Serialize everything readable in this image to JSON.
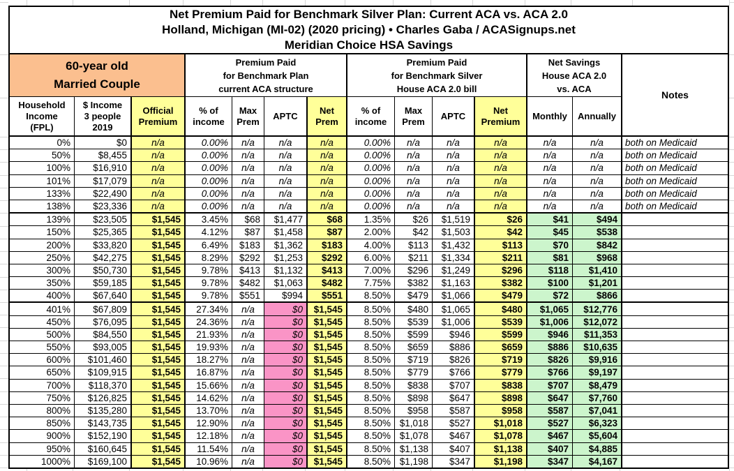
{
  "sheet": {
    "title_lines": [
      "Net Premium Paid for Benchmark Silver Plan: Current ACA vs. ACA 2.0",
      "Holland, Michigan (MI-02) (2020 pricing) • Charles Gaba / ACASignups.net",
      "Meridian Choice HSA Savings"
    ],
    "groups": {
      "household": "60-year old\nMarried Couple",
      "aca_current": "Premium Paid\nfor Benchmark Plan\ncurrent ACA structure",
      "aca_house": "Premium Paid\nfor Benchmark Silver\nHouse ACA 2.0 bill",
      "net_savings": "Net Savings\nHouse ACA 2.0\nvs. ACA"
    },
    "notes_header": "Notes",
    "column_headers": [
      "Household\nIncome\n(FPL)",
      "$ Income\n3 people\n2019",
      "Official\nPremium",
      "% of\nincome",
      "Max\nPrem",
      "APTC",
      "Net\nPrem",
      "% of\nincome",
      "Max\nPrem",
      "APTC",
      "Net\nPremium",
      "Monthly",
      "Annually"
    ],
    "rows": [
      {
        "section": "medicaid",
        "cells": [
          "0%",
          "$0",
          "n/a",
          "0.00%",
          "n/a",
          "n/a",
          "n/a",
          "0.00%",
          "n/a",
          "n/a",
          "n/a",
          "n/a",
          "n/a",
          "both on Medicaid"
        ]
      },
      {
        "section": "medicaid",
        "cells": [
          "50%",
          "$8,455",
          "n/a",
          "0.00%",
          "n/a",
          "n/a",
          "n/a",
          "0.00%",
          "n/a",
          "n/a",
          "n/a",
          "n/a",
          "n/a",
          "both on Medicaid"
        ]
      },
      {
        "section": "medicaid",
        "cells": [
          "100%",
          "$16,910",
          "n/a",
          "0.00%",
          "n/a",
          "n/a",
          "n/a",
          "0.00%",
          "n/a",
          "n/a",
          "n/a",
          "n/a",
          "n/a",
          "both on Medicaid"
        ]
      },
      {
        "section": "medicaid",
        "cells": [
          "101%",
          "$17,079",
          "n/a",
          "0.00%",
          "n/a",
          "n/a",
          "n/a",
          "0.00%",
          "n/a",
          "n/a",
          "n/a",
          "n/a",
          "n/a",
          "both on Medicaid"
        ]
      },
      {
        "section": "medicaid",
        "cells": [
          "133%",
          "$22,490",
          "n/a",
          "0.00%",
          "n/a",
          "n/a",
          "n/a",
          "0.00%",
          "n/a",
          "n/a",
          "n/a",
          "n/a",
          "n/a",
          "both on Medicaid"
        ]
      },
      {
        "section": "medicaid",
        "cells": [
          "138%",
          "$23,336",
          "n/a",
          "0.00%",
          "n/a",
          "n/a",
          "n/a",
          "0.00%",
          "n/a",
          "n/a",
          "n/a",
          "n/a",
          "n/a",
          "both on Medicaid"
        ]
      },
      {
        "section": "aptc",
        "cells": [
          "139%",
          "$23,505",
          "$1,545",
          "3.45%",
          "$68",
          "$1,477",
          "$68",
          "1.35%",
          "$26",
          "$1,519",
          "$26",
          "$41",
          "$494",
          ""
        ]
      },
      {
        "section": "aptc",
        "cells": [
          "150%",
          "$25,365",
          "$1,545",
          "4.12%",
          "$87",
          "$1,458",
          "$87",
          "2.00%",
          "$42",
          "$1,503",
          "$42",
          "$45",
          "$538",
          ""
        ]
      },
      {
        "section": "aptc",
        "cells": [
          "200%",
          "$33,820",
          "$1,545",
          "6.49%",
          "$183",
          "$1,362",
          "$183",
          "4.00%",
          "$113",
          "$1,432",
          "$113",
          "$70",
          "$842",
          ""
        ]
      },
      {
        "section": "aptc",
        "cells": [
          "250%",
          "$42,275",
          "$1,545",
          "8.29%",
          "$292",
          "$1,253",
          "$292",
          "6.00%",
          "$211",
          "$1,334",
          "$211",
          "$81",
          "$968",
          ""
        ]
      },
      {
        "section": "aptc",
        "cells": [
          "300%",
          "$50,730",
          "$1,545",
          "9.78%",
          "$413",
          "$1,132",
          "$413",
          "7.00%",
          "$296",
          "$1,249",
          "$296",
          "$118",
          "$1,410",
          ""
        ]
      },
      {
        "section": "aptc",
        "cells": [
          "350%",
          "$59,185",
          "$1,545",
          "9.78%",
          "$482",
          "$1,063",
          "$482",
          "7.75%",
          "$382",
          "$1,163",
          "$382",
          "$100",
          "$1,201",
          ""
        ]
      },
      {
        "section": "aptc",
        "cells": [
          "400%",
          "$67,640",
          "$1,545",
          "9.78%",
          "$551",
          "$994",
          "$551",
          "8.50%",
          "$479",
          "$1,066",
          "$479",
          "$72",
          "$866",
          ""
        ]
      },
      {
        "section": "cap",
        "cells": [
          "401%",
          "$67,809",
          "$1,545",
          "27.34%",
          "n/a",
          "$0",
          "$1,545",
          "8.50%",
          "$480",
          "$1,065",
          "$480",
          "$1,065",
          "$12,776",
          ""
        ]
      },
      {
        "section": "cap",
        "cells": [
          "450%",
          "$76,095",
          "$1,545",
          "24.36%",
          "n/a",
          "$0",
          "$1,545",
          "8.50%",
          "$539",
          "$1,006",
          "$539",
          "$1,006",
          "$12,072",
          ""
        ]
      },
      {
        "section": "cap",
        "cells": [
          "500%",
          "$84,550",
          "$1,545",
          "21.93%",
          "n/a",
          "$0",
          "$1,545",
          "8.50%",
          "$599",
          "$946",
          "$599",
          "$946",
          "$11,353",
          ""
        ]
      },
      {
        "section": "cap",
        "cells": [
          "550%",
          "$93,005",
          "$1,545",
          "19.93%",
          "n/a",
          "$0",
          "$1,545",
          "8.50%",
          "$659",
          "$886",
          "$659",
          "$886",
          "$10,635",
          ""
        ]
      },
      {
        "section": "cap",
        "cells": [
          "600%",
          "$101,460",
          "$1,545",
          "18.27%",
          "n/a",
          "$0",
          "$1,545",
          "8.50%",
          "$719",
          "$826",
          "$719",
          "$826",
          "$9,916",
          ""
        ]
      },
      {
        "section": "cap",
        "cells": [
          "650%",
          "$109,915",
          "$1,545",
          "16.87%",
          "n/a",
          "$0",
          "$1,545",
          "8.50%",
          "$779",
          "$766",
          "$779",
          "$766",
          "$9,197",
          ""
        ]
      },
      {
        "section": "cap",
        "cells": [
          "700%",
          "$118,370",
          "$1,545",
          "15.66%",
          "n/a",
          "$0",
          "$1,545",
          "8.50%",
          "$838",
          "$707",
          "$838",
          "$707",
          "$8,479",
          ""
        ]
      },
      {
        "section": "cap",
        "cells": [
          "750%",
          "$126,825",
          "$1,545",
          "14.62%",
          "n/a",
          "$0",
          "$1,545",
          "8.50%",
          "$898",
          "$647",
          "$898",
          "$647",
          "$7,760",
          ""
        ]
      },
      {
        "section": "cap",
        "cells": [
          "800%",
          "$135,280",
          "$1,545",
          "13.70%",
          "n/a",
          "$0",
          "$1,545",
          "8.50%",
          "$958",
          "$587",
          "$958",
          "$587",
          "$7,041",
          ""
        ]
      },
      {
        "section": "cap",
        "cells": [
          "850%",
          "$143,735",
          "$1,545",
          "12.90%",
          "n/a",
          "$0",
          "$1,545",
          "8.50%",
          "$1,018",
          "$527",
          "$1,018",
          "$527",
          "$6,323",
          ""
        ]
      },
      {
        "section": "cap",
        "cells": [
          "900%",
          "$152,190",
          "$1,545",
          "12.18%",
          "n/a",
          "$0",
          "$1,545",
          "8.50%",
          "$1,078",
          "$467",
          "$1,078",
          "$467",
          "$5,604",
          ""
        ]
      },
      {
        "section": "cap",
        "cells": [
          "950%",
          "$160,645",
          "$1,545",
          "11.54%",
          "n/a",
          "$0",
          "$1,545",
          "8.50%",
          "$1,138",
          "$407",
          "$1,138",
          "$407",
          "$4,885",
          ""
        ]
      },
      {
        "section": "cap",
        "cells": [
          "1000%",
          "$169,100",
          "$1,545",
          "10.96%",
          "n/a",
          "$0",
          "$1,545",
          "8.50%",
          "$1,198",
          "$347",
          "$1,198",
          "$347",
          "$4,167",
          ""
        ]
      }
    ],
    "colors": {
      "header_orange": "#FBBF8F",
      "highlight_yellow": "#FFFF99",
      "zero_pink": "#FA94C6",
      "savings_green": "#CCF5CC",
      "margin_gridline": "#D6D6D6"
    }
  }
}
